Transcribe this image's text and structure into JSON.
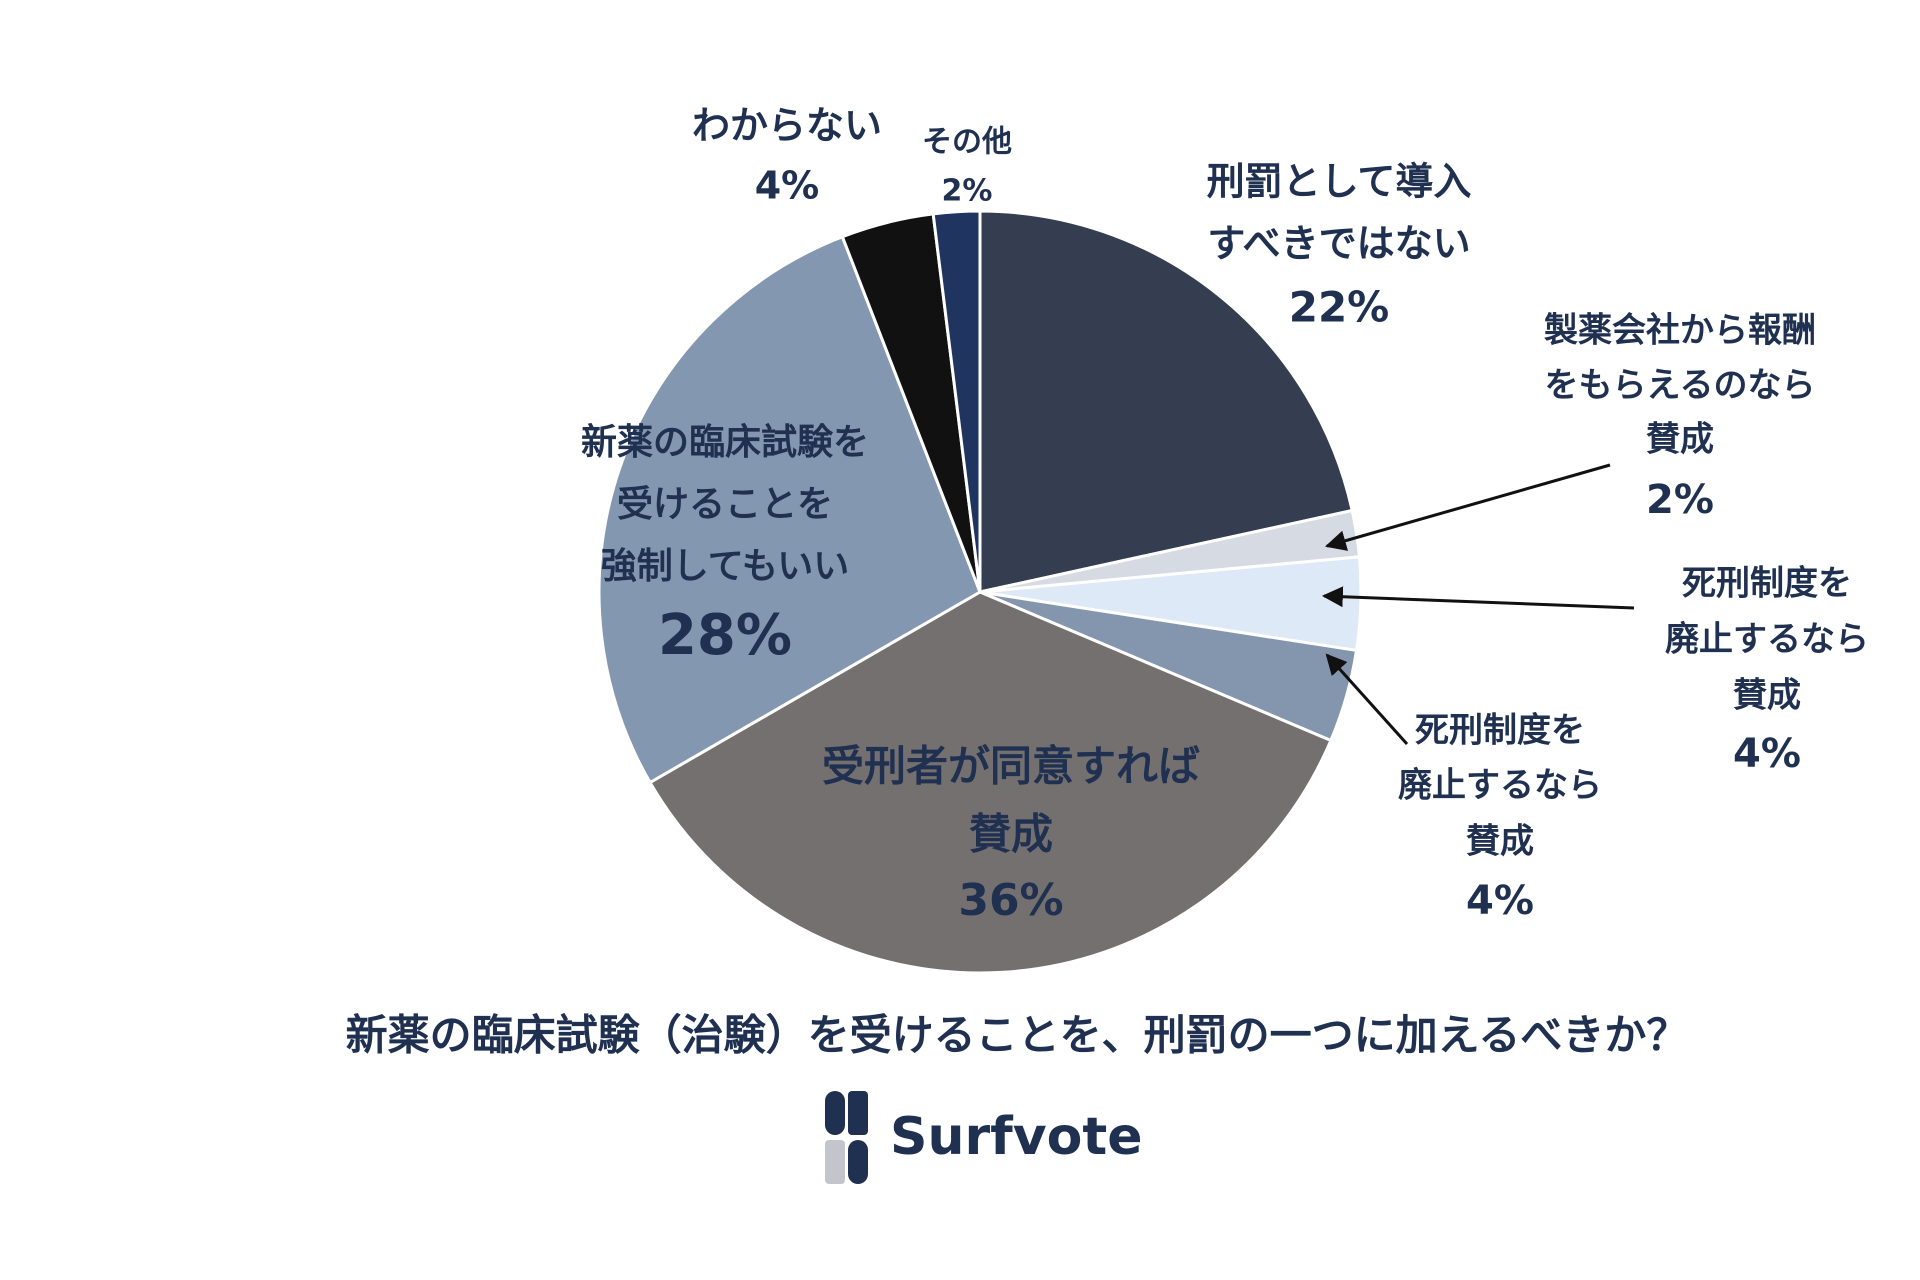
{
  "chart_data": {
    "type": "pie",
    "title": "新薬の臨床試験（治験）を受けることを、刑罰の一つに加えるべきか？",
    "brand": "Surfvote",
    "categories": [
      [
        "刑罰として導入",
        "すべきではない"
      ],
      [
        "製薬会社から報酬",
        "をもらえるのなら",
        "賛成"
      ],
      [
        "死刑制度を",
        "廃止するなら",
        "賛成"
      ],
      [
        "死刑制度を",
        "廃止するなら",
        "賛成"
      ],
      [
        "受刑者が同意すれば",
        "賛成"
      ],
      [
        "新薬の臨床試験を",
        "受けることを",
        "強制してもいい"
      ],
      [
        "わからない"
      ],
      [
        "その他"
      ]
    ],
    "values": [
      22,
      2,
      4,
      4,
      36,
      28,
      4,
      2
    ],
    "value_labels": [
      "22%",
      "2%",
      "4%",
      "4%",
      "36%",
      "28%",
      "4%",
      "2%"
    ],
    "colors": [
      "#343e50",
      "#d6dae3",
      "#dde9f6",
      "#8496ae",
      "#757070",
      "#8497b0",
      "#111111",
      "#1f3560"
    ]
  }
}
